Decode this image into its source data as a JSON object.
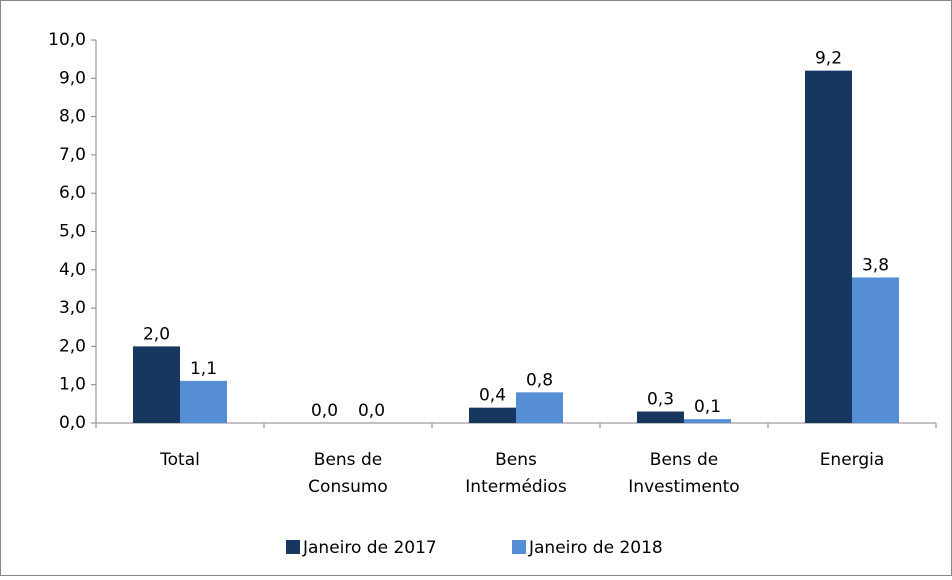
{
  "chart_data": {
    "type": "bar",
    "categories": [
      "Total",
      "Bens de\nConsumo",
      "Bens\nIntermédios",
      "Bens de\nInvestimento",
      "Energia"
    ],
    "series": [
      {
        "name": "Janeiro de 2017",
        "color": "#17375e",
        "values": [
          2.0,
          0.0,
          0.4,
          0.3,
          9.2
        ],
        "value_labels": [
          "2,0",
          "0,0",
          "0,4",
          "0,3",
          "9,2"
        ]
      },
      {
        "name": "Janeiro de 2018",
        "color": "#558ed5",
        "values": [
          1.1,
          0.0,
          0.8,
          0.1,
          3.8
        ],
        "value_labels": [
          "1,1",
          "0,0",
          "0,8",
          "0,1",
          "3,8"
        ]
      }
    ],
    "ylim": [
      0,
      10
    ],
    "yticks": [
      {
        "value": 0,
        "label": "0,0"
      },
      {
        "value": 1,
        "label": "1,0"
      },
      {
        "value": 2,
        "label": "2,0"
      },
      {
        "value": 3,
        "label": "3,0"
      },
      {
        "value": 4,
        "label": "4,0"
      },
      {
        "value": 5,
        "label": "5,0"
      },
      {
        "value": 6,
        "label": "6,0"
      },
      {
        "value": 7,
        "label": "7,0"
      },
      {
        "value": 8,
        "label": "8,0"
      },
      {
        "value": 9,
        "label": "9,0"
      },
      {
        "value": 10,
        "label": "10,0"
      }
    ],
    "grid": false,
    "legend": "bottom"
  }
}
